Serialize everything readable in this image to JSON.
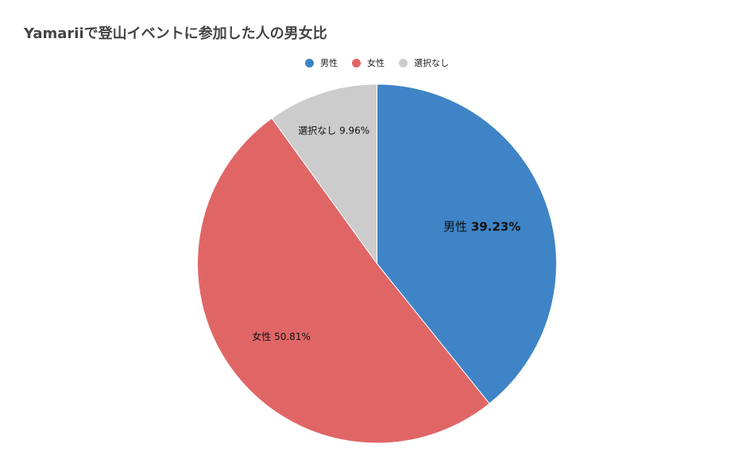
{
  "chart_data": {
    "type": "pie",
    "title": "Yamariiで登山イベントに参加した人の男女比",
    "legend_position": "top",
    "categories": [
      "男性",
      "女性",
      "選択なし"
    ],
    "values": [
      39.23,
      50.81,
      9.96
    ],
    "data_labels": [
      "39.23%",
      "50.81%",
      "9.96%"
    ],
    "colors": [
      "#3e84c6",
      "#e06666",
      "#cccccc"
    ],
    "start_angle": "12 o'clock",
    "direction": "clockwise"
  }
}
